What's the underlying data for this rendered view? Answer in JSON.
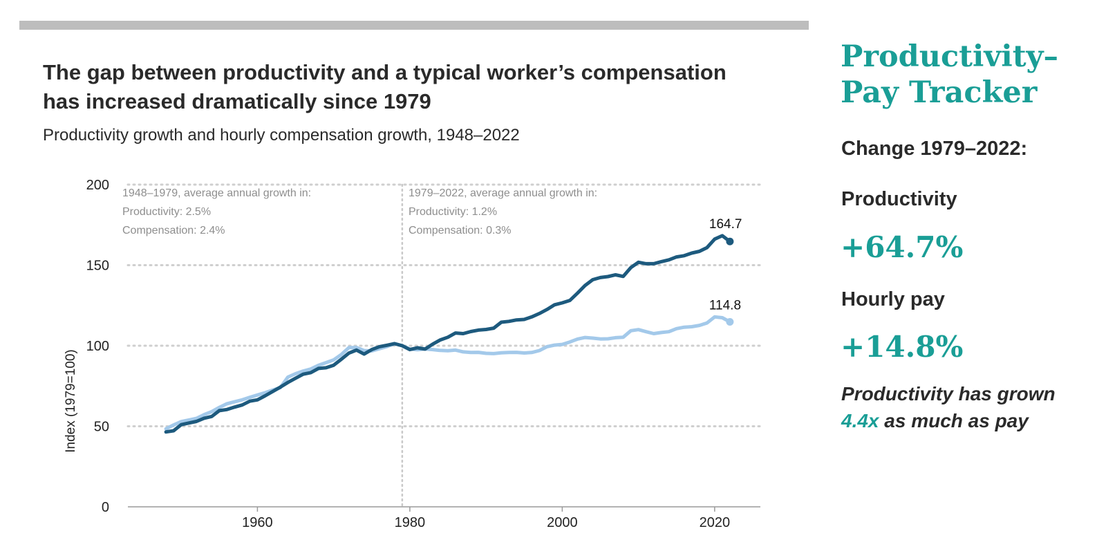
{
  "chart": {
    "title": "The gap between productivity and a typical worker’s compensation has increased dramatically since 1979",
    "subtitle": "Productivity growth and hourly compensation growth, 1948–2022",
    "annotations": [
      {
        "lines": [
          "1948–1979, average annual growth in:",
          "Productivity: 2.5%",
          "Compensation: 2.4%"
        ]
      },
      {
        "lines": [
          "1979–2022, average annual growth in:",
          "Productivity: 1.2%",
          "Compensation: 0.3%"
        ]
      }
    ],
    "end_labels": {
      "productivity": "164.7",
      "compensation": "114.8"
    }
  },
  "tracker": {
    "title_line1": "Productivity–",
    "title_line2": "Pay Tracker",
    "change_label": "Change 1979–2022:",
    "productivity_label": "Productivity",
    "productivity_value": "+64.7%",
    "pay_label": "Hourly pay",
    "pay_value": "+14.8%",
    "note_part1": "Productivity has grown ",
    "note_accent": "4.4x",
    "note_part2": " as much as pay"
  },
  "colors": {
    "productivity": "#1d5a7e",
    "compensation": "#a3c9ea",
    "accent": "#1a9e96"
  },
  "chart_data": {
    "type": "line",
    "title": "The gap between productivity and a typical worker’s compensation has increased dramatically since 1979",
    "subtitle": "Productivity growth and hourly compensation growth, 1948–2022",
    "ylabel": "Index (1979=100)",
    "xlabel": "",
    "xlim": [
      1943,
      2026
    ],
    "ylim": [
      0,
      200
    ],
    "x_ticks": [
      1960,
      1980,
      2000,
      2020
    ],
    "y_ticks": [
      0,
      50,
      100,
      150,
      200
    ],
    "grid": "horizontal dotted",
    "reference_line_x": 1979,
    "x": [
      1948,
      1949,
      1950,
      1951,
      1952,
      1953,
      1954,
      1955,
      1956,
      1957,
      1958,
      1959,
      1960,
      1961,
      1962,
      1963,
      1964,
      1965,
      1966,
      1967,
      1968,
      1969,
      1970,
      1971,
      1972,
      1973,
      1974,
      1975,
      1976,
      1977,
      1978,
      1979,
      1980,
      1981,
      1982,
      1983,
      1984,
      1985,
      1986,
      1987,
      1988,
      1989,
      1990,
      1991,
      1992,
      1993,
      1994,
      1995,
      1996,
      1997,
      1998,
      1999,
      2000,
      2001,
      2002,
      2003,
      2004,
      2005,
      2006,
      2007,
      2008,
      2009,
      2010,
      2011,
      2012,
      2013,
      2014,
      2015,
      2016,
      2017,
      2018,
      2019,
      2020,
      2021,
      2022
    ],
    "series": [
      {
        "name": "Productivity",
        "values": [
          46.5,
          47.2,
          51.0,
          52.0,
          53.0,
          55.0,
          56.1,
          59.7,
          60.4,
          61.9,
          63.2,
          65.6,
          66.4,
          68.9,
          71.6,
          74.3,
          77.2,
          79.8,
          82.3,
          83.3,
          85.9,
          86.3,
          87.9,
          91.6,
          95.4,
          97.3,
          94.8,
          97.6,
          99.4,
          100.3,
          101.3,
          100.0,
          97.6,
          98.7,
          97.9,
          101.0,
          103.6,
          105.3,
          107.9,
          107.5,
          108.8,
          109.7,
          110.1,
          110.9,
          114.6,
          115.1,
          116.0,
          116.3,
          117.9,
          120.0,
          122.5,
          125.4,
          126.6,
          128.1,
          132.6,
          137.4,
          141.0,
          142.3,
          142.9,
          144.0,
          143.0,
          148.5,
          151.8,
          150.9,
          150.9,
          152.2,
          153.3,
          155.1,
          155.9,
          157.5,
          158.6,
          160.9,
          166.2,
          168.3,
          164.7
        ]
      },
      {
        "name": "Hourly compensation",
        "values": [
          48.4,
          50.8,
          52.9,
          53.9,
          54.9,
          57.2,
          59.1,
          61.7,
          64.0,
          65.2,
          66.4,
          68.0,
          69.4,
          70.8,
          72.5,
          74.0,
          80.5,
          82.6,
          84.3,
          85.6,
          87.8,
          89.5,
          91.2,
          94.5,
          98.8,
          98.9,
          97.0,
          96.8,
          98.1,
          99.5,
          101.3,
          100.0,
          97.9,
          97.5,
          98.0,
          97.6,
          97.1,
          96.9,
          97.3,
          96.2,
          95.8,
          95.9,
          95.3,
          95.1,
          95.6,
          95.8,
          95.9,
          95.5,
          95.8,
          97.0,
          99.4,
          100.4,
          100.8,
          102.3,
          104.1,
          105.1,
          104.7,
          104.2,
          104.3,
          105.0,
          105.3,
          109.3,
          110.0,
          108.7,
          107.5,
          108.2,
          108.7,
          110.6,
          111.5,
          111.8,
          112.6,
          114.1,
          117.9,
          117.4,
          114.8
        ]
      }
    ],
    "end_value_labels": [
      "164.7",
      "114.8"
    ]
  }
}
